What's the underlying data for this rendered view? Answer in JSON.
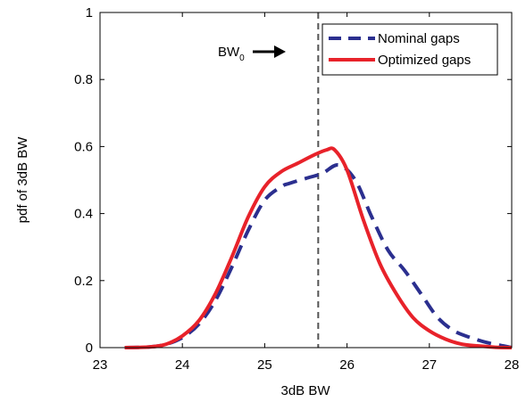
{
  "chart_data": {
    "type": "line",
    "xlabel": "3dB BW",
    "ylabel": "pdf of 3dB BW",
    "xlim": [
      23,
      28
    ],
    "ylim": [
      0,
      1
    ],
    "xticks": [
      23,
      24,
      25,
      26,
      27,
      28
    ],
    "yticks": [
      0,
      0.2,
      0.4,
      0.6,
      0.8,
      1
    ],
    "xtick_labels": [
      "23",
      "24",
      "25",
      "26",
      "27",
      "28"
    ],
    "ytick_labels": [
      "0",
      "0.2",
      "0.4",
      "0.6",
      "0.8",
      "1"
    ],
    "grid": false,
    "legend_position": "top-right",
    "series": [
      {
        "name": "Nominal gaps",
        "color": "#2b2f8f",
        "style": "dashed",
        "x": [
          23.3,
          23.6,
          23.8,
          24.0,
          24.2,
          24.4,
          24.6,
          24.8,
          25.0,
          25.2,
          25.3,
          25.5,
          25.7,
          25.9,
          26.1,
          26.3,
          26.5,
          26.7,
          26.9,
          27.1,
          27.3,
          27.5,
          27.7,
          27.9,
          28.0
        ],
        "values": [
          0.0,
          0.002,
          0.01,
          0.03,
          0.07,
          0.14,
          0.24,
          0.35,
          0.44,
          0.48,
          0.49,
          0.505,
          0.52,
          0.545,
          0.5,
          0.39,
          0.29,
          0.23,
          0.16,
          0.09,
          0.05,
          0.03,
          0.015,
          0.005,
          0.0
        ]
      },
      {
        "name": "Optimized gaps",
        "color": "#e8222a",
        "style": "solid",
        "x": [
          23.3,
          23.6,
          23.8,
          24.0,
          24.2,
          24.4,
          24.6,
          24.8,
          25.0,
          25.2,
          25.4,
          25.6,
          25.75,
          25.85,
          26.0,
          26.2,
          26.4,
          26.6,
          26.8,
          27.0,
          27.2,
          27.4,
          27.6,
          27.8,
          28.0
        ],
        "values": [
          0.0,
          0.002,
          0.01,
          0.035,
          0.08,
          0.16,
          0.27,
          0.39,
          0.48,
          0.525,
          0.55,
          0.575,
          0.59,
          0.59,
          0.53,
          0.38,
          0.25,
          0.16,
          0.09,
          0.05,
          0.025,
          0.01,
          0.005,
          0.001,
          0.0
        ]
      }
    ],
    "reference_line": {
      "x": 25.65,
      "color": "#555555",
      "style": "dashed"
    },
    "annotation": {
      "text": "BW",
      "subscript": "0",
      "arrow": "right"
    }
  }
}
